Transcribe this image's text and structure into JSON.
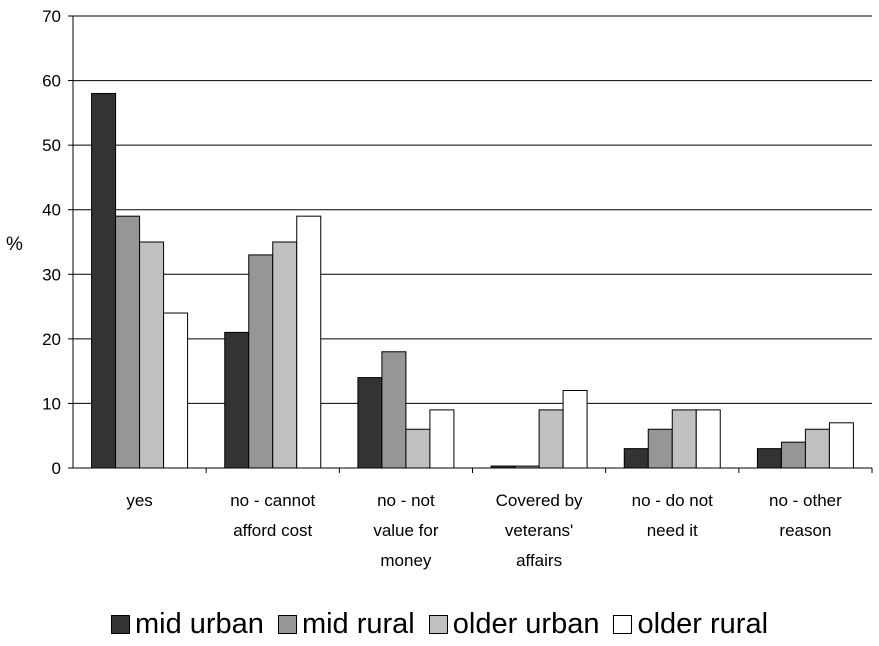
{
  "chart_data": {
    "type": "bar",
    "title": "",
    "xlabel": "",
    "ylabel": "%",
    "ylim": [
      0,
      70
    ],
    "yticks": [
      "0",
      "10",
      "20",
      "30",
      "40",
      "50",
      "60",
      "70"
    ],
    "grid": true,
    "legend_position": "bottom",
    "categories": [
      [
        "yes"
      ],
      [
        "no - cannot",
        "afford cost"
      ],
      [
        "no - not",
        "value for",
        "money"
      ],
      [
        "Covered by",
        "veterans'",
        "affairs"
      ],
      [
        "no - do not",
        "need it"
      ],
      [
        "no - other",
        "reason"
      ]
    ],
    "series": [
      {
        "name": "mid urban",
        "color": "#333333",
        "values": [
          58,
          21,
          14,
          0.3,
          3,
          3
        ]
      },
      {
        "name": "mid rural",
        "color": "#969696",
        "values": [
          39,
          33,
          18,
          0.3,
          6,
          4
        ]
      },
      {
        "name": "older urban",
        "color": "#c0c0c0",
        "values": [
          35,
          35,
          6,
          9,
          9,
          6
        ]
      },
      {
        "name": "older rural",
        "color": "#ffffff",
        "values": [
          24,
          39,
          9,
          12,
          9,
          7
        ]
      }
    ]
  }
}
